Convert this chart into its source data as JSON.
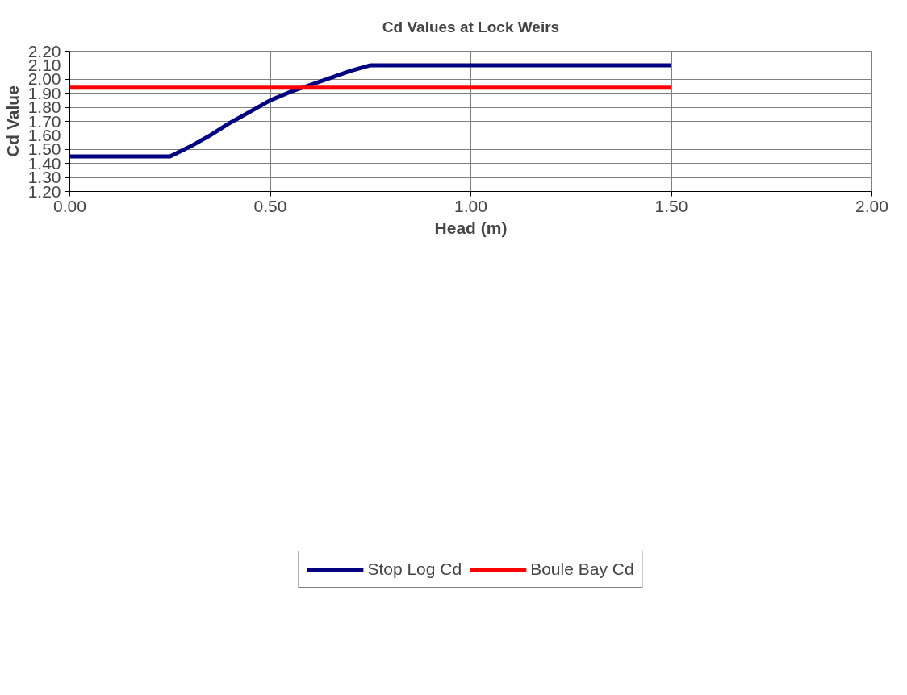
{
  "chart_data": {
    "type": "line",
    "title": "Cd Values at Lock Weirs",
    "xlabel": "Head (m)",
    "ylabel": "Cd Value",
    "xlim": [
      0,
      2
    ],
    "ylim": [
      1.2,
      2.2
    ],
    "xticks": [
      {
        "value": 0,
        "label": "0.00"
      },
      {
        "value": 0.5,
        "label": "0.50"
      },
      {
        "value": 1,
        "label": "1.00"
      },
      {
        "value": 1.5,
        "label": "1.50"
      },
      {
        "value": 2,
        "label": "2.00"
      }
    ],
    "yticks": [
      {
        "value": 1.2,
        "label": "1.20"
      },
      {
        "value": 1.3,
        "label": "1.30"
      },
      {
        "value": 1.4,
        "label": "1.40"
      },
      {
        "value": 1.5,
        "label": "1.50"
      },
      {
        "value": 1.6,
        "label": "1.60"
      },
      {
        "value": 1.7,
        "label": "1.70"
      },
      {
        "value": 1.8,
        "label": "1.80"
      },
      {
        "value": 1.9,
        "label": "1.90"
      },
      {
        "value": 2.0,
        "label": "2.00"
      },
      {
        "value": 2.1,
        "label": "2.10"
      },
      {
        "value": 2.2,
        "label": "2.20"
      }
    ],
    "grid": true,
    "legend": "bottom",
    "marker": "none",
    "line_style": "solid",
    "series": [
      {
        "name": "Stop Log Cd",
        "color": "#000080",
        "x": [
          0,
          0.1,
          0.2,
          0.25,
          0.3,
          0.35,
          0.4,
          0.45,
          0.5,
          0.55,
          0.6,
          0.65,
          0.7,
          0.75,
          1.0,
          1.25,
          1.5
        ],
        "values": [
          1.45,
          1.45,
          1.45,
          1.45,
          1.52,
          1.6,
          1.69,
          1.77,
          1.85,
          1.91,
          1.96,
          2.01,
          2.06,
          2.1,
          2.1,
          2.1,
          2.1
        ]
      },
      {
        "name": "Boule Bay Cd",
        "color": "#ff0000",
        "x": [
          0,
          0.5,
          1.0,
          1.5
        ],
        "values": [
          1.94,
          1.94,
          1.94,
          1.94
        ]
      }
    ]
  }
}
